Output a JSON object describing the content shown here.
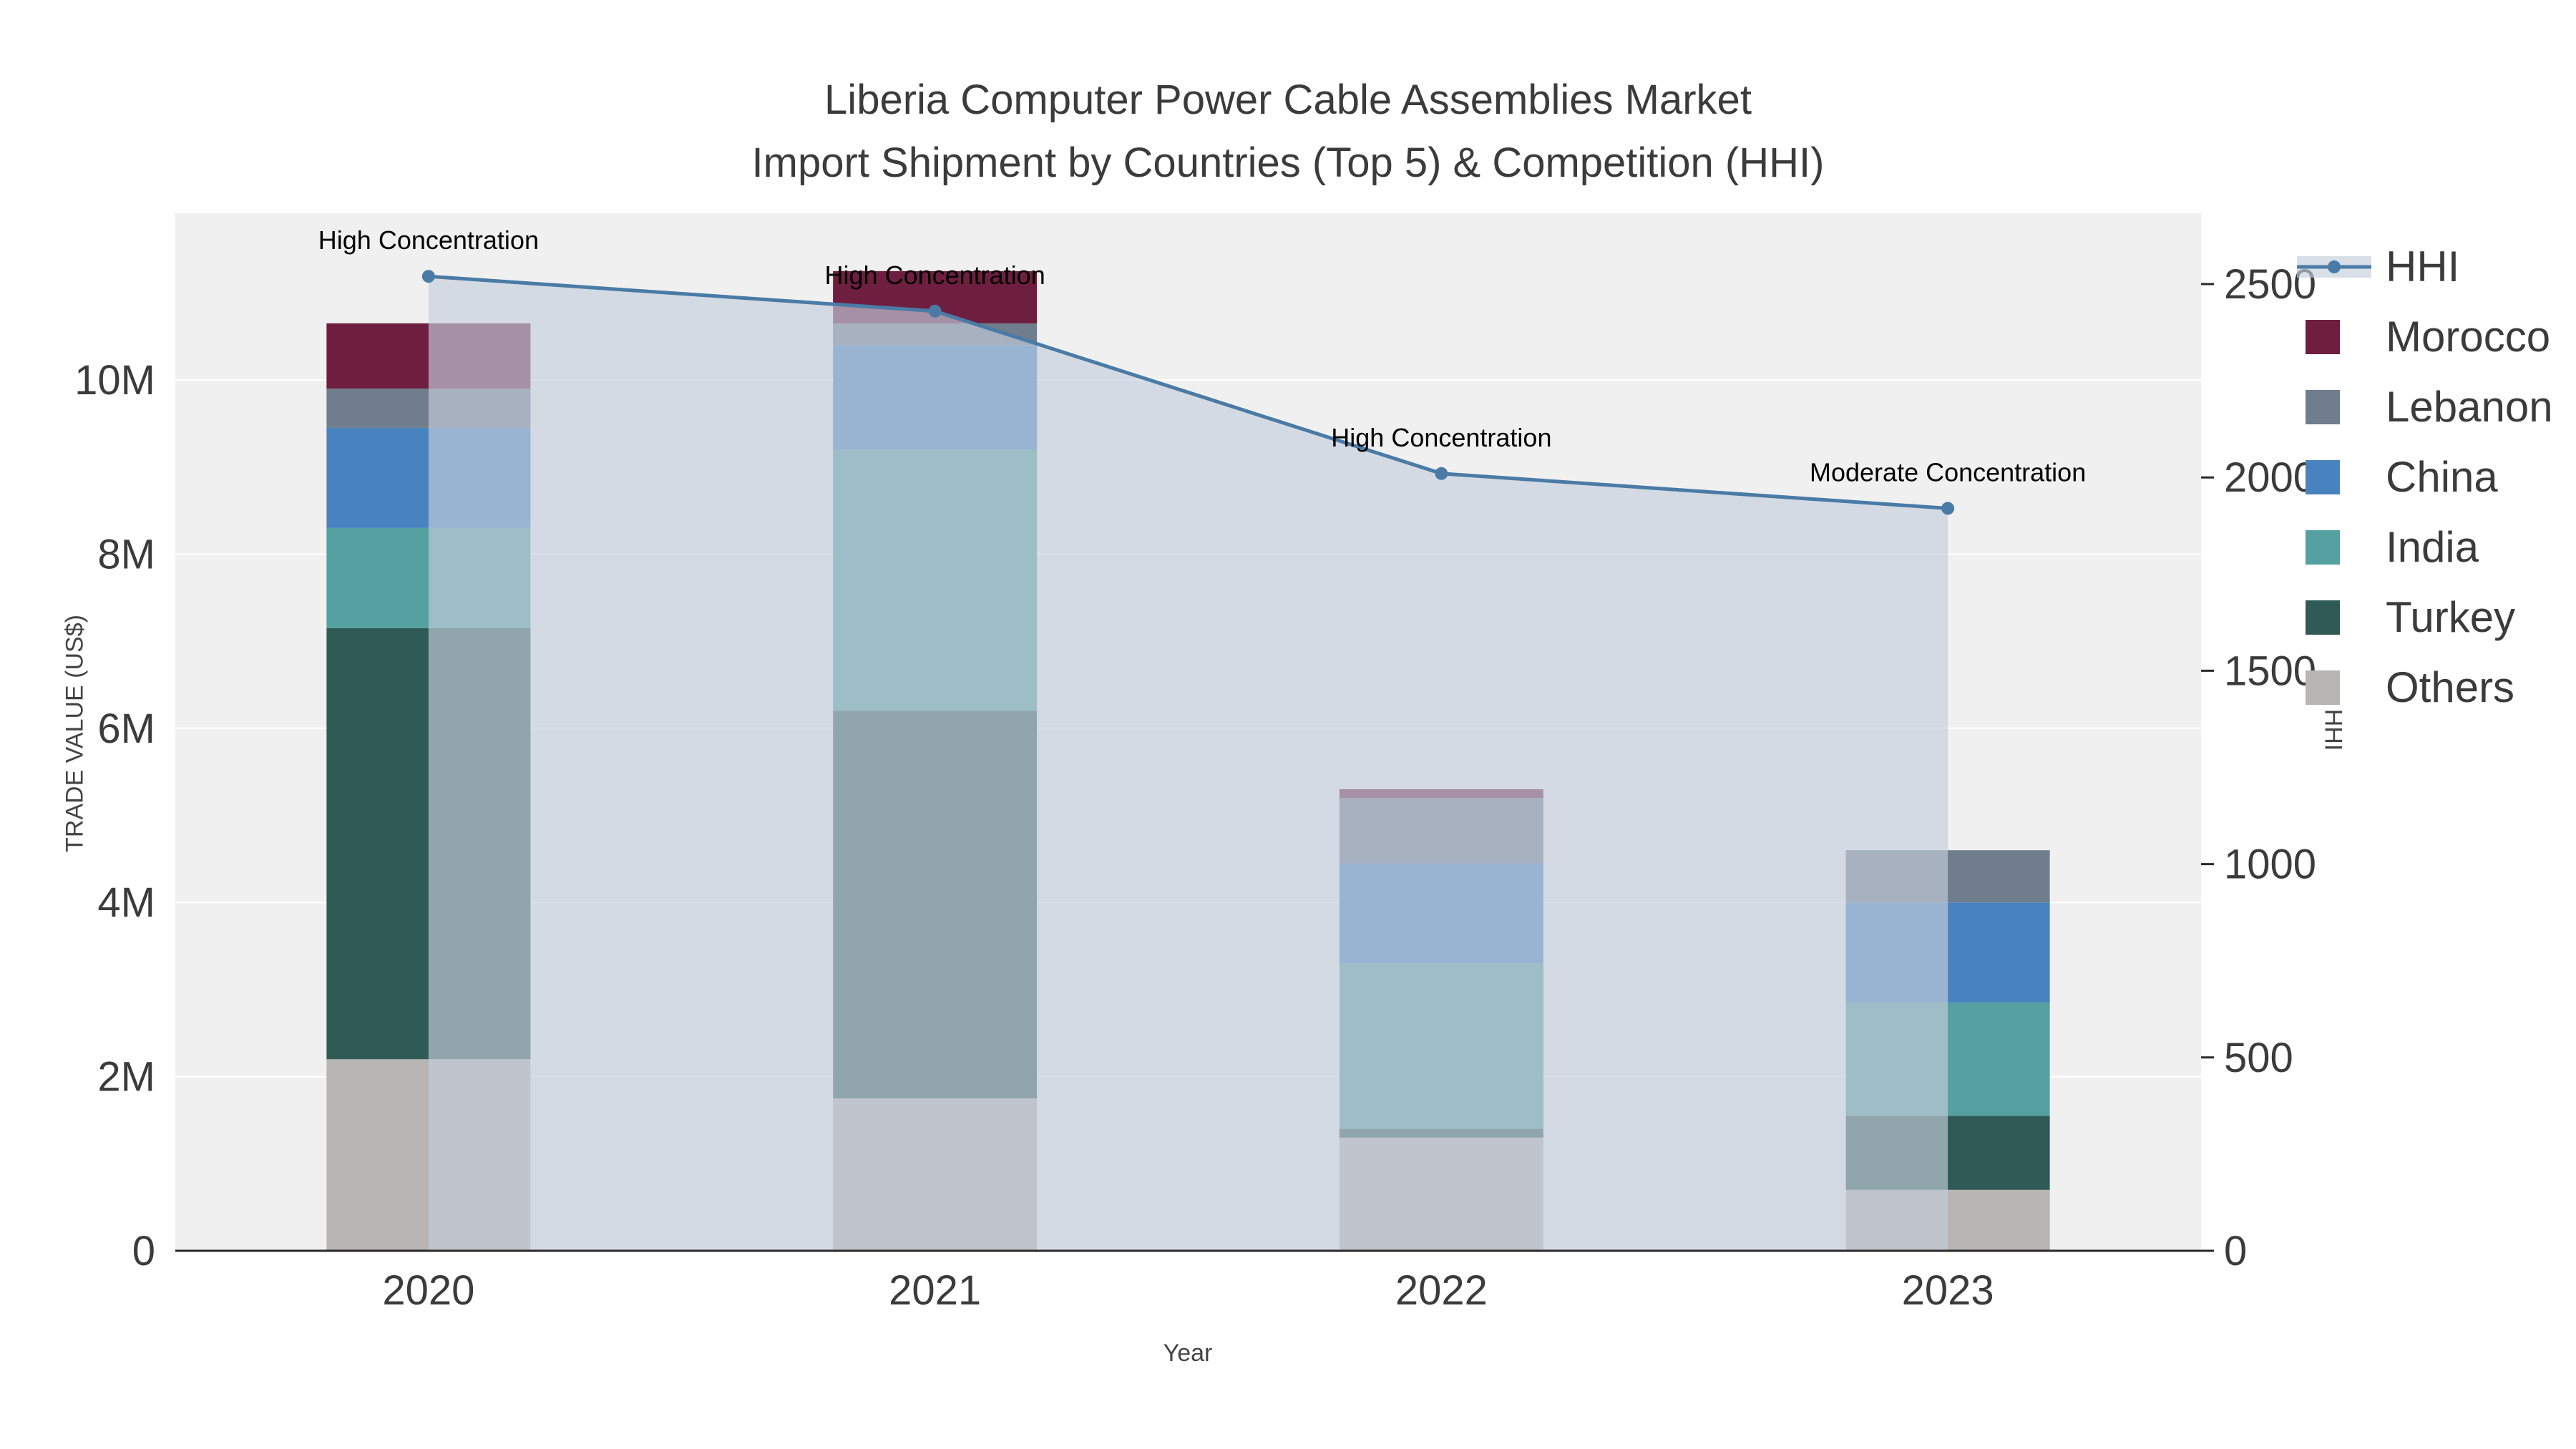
{
  "title": {
    "line1": "Liberia Computer Power Cable Assemblies Market",
    "line2": "Import Shipment by Countries (Top 5) & Competition (HHI)"
  },
  "axes": {
    "left": {
      "title": "TRADE VALUE (US$)",
      "ticks": [
        {
          "label": "0",
          "value": 0
        },
        {
          "label": "2M",
          "value": 2
        },
        {
          "label": "4M",
          "value": 4
        },
        {
          "label": "6M",
          "value": 6
        },
        {
          "label": "8M",
          "value": 8
        },
        {
          "label": "10M",
          "value": 10
        }
      ]
    },
    "right": {
      "title": "HHI",
      "ticks": [
        {
          "label": "0",
          "value": 0
        },
        {
          "label": "500",
          "value": 500
        },
        {
          "label": "1000",
          "value": 1000
        },
        {
          "label": "1500",
          "value": 1500
        },
        {
          "label": "2000",
          "value": 2000
        },
        {
          "label": "2500",
          "value": 2500
        }
      ]
    },
    "x": {
      "title": "Year",
      "categories": [
        "2020",
        "2021",
        "2022",
        "2023"
      ]
    }
  },
  "chart_data": {
    "type": "combo: stacked-bar (left axis) + line-with-area (right axis)",
    "unit_bars": "Trade value, US$ millions",
    "unit_line": "HHI index",
    "categories": [
      "2020",
      "2021",
      "2022",
      "2023"
    ],
    "bar_series": [
      {
        "name": "Others",
        "color": "#b7b4b1",
        "values": [
          2.2,
          1.75,
          1.3,
          0.7
        ]
      },
      {
        "name": "Turkey",
        "color": "#2f5a55",
        "values": [
          4.95,
          4.45,
          0.1,
          0.85
        ]
      },
      {
        "name": "India",
        "color": "#55a0a0",
        "values": [
          1.15,
          3.0,
          1.9,
          1.3
        ]
      },
      {
        "name": "China",
        "color": "#4983bf",
        "values": [
          1.15,
          1.2,
          1.15,
          1.15
        ]
      },
      {
        "name": "Lebanon",
        "color": "#6f7d8c",
        "values": [
          0.45,
          0.25,
          0.75,
          0.6
        ]
      },
      {
        "name": "Morocco",
        "color": "#6e1e3f",
        "values": [
          0.75,
          0.6,
          0.1,
          0
        ]
      }
    ],
    "line_series": {
      "name": "HHI",
      "axis": "right",
      "color": "#4a7ba6",
      "area_fill": "rgba(197,206,219,0.65)",
      "values": [
        2520,
        2430,
        2010,
        1920
      ]
    },
    "annotations": [
      {
        "category": "2020",
        "text": "High Concentration"
      },
      {
        "category": "2021",
        "text": "High Concentration"
      },
      {
        "category": "2022",
        "text": "High Concentration"
      },
      {
        "category": "2023",
        "text": "Moderate Concentration"
      }
    ],
    "ylim_left_millions": [
      0,
      11.9
    ],
    "ylim_right": [
      0,
      2680
    ],
    "grid": "horizontal white gridlines on light gray plot background",
    "legend_position": "right"
  },
  "legend": {
    "items": [
      {
        "label": "HHI",
        "type": "line",
        "color": "#4a7ba6"
      },
      {
        "label": "Morocco",
        "type": "swatch",
        "color": "#6e1e3f"
      },
      {
        "label": "Lebanon",
        "type": "swatch",
        "color": "#6f7d8c"
      },
      {
        "label": "China",
        "type": "swatch",
        "color": "#4983bf"
      },
      {
        "label": "India",
        "type": "swatch",
        "color": "#55a0a0"
      },
      {
        "label": "Turkey",
        "type": "swatch",
        "color": "#2f5a55"
      },
      {
        "label": "Others",
        "type": "swatch",
        "color": "#b7b4b1"
      }
    ]
  },
  "colors": {
    "plot_bg": "#f0f0f0",
    "grid": "#ffffff",
    "axis_line": "#2a2a2a",
    "text": "#3b3b3b",
    "annotation": "#000000"
  }
}
